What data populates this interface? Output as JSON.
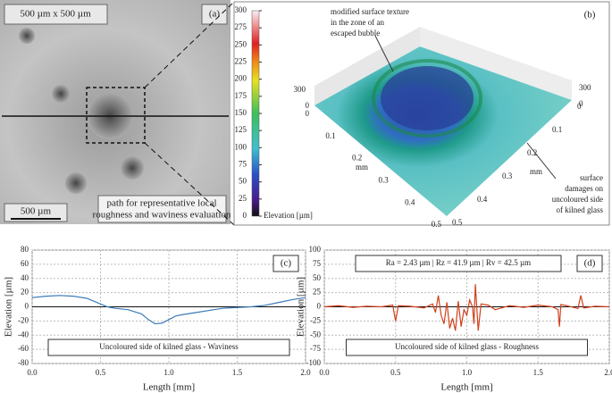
{
  "panel_a": {
    "label": "(a)",
    "size_text": "500 µm  x 500 µm",
    "scale_text": "500 µm",
    "path_note": [
      "path for representative local",
      "roughness and waviness evaluation"
    ]
  },
  "panel_b": {
    "label": "(b)",
    "bubble_note": [
      "modified surface texture",
      "in the zone of an",
      "escaped bubble"
    ],
    "damage_note": [
      "surface",
      "damages on",
      "uncoloured side",
      "of kilned glass"
    ],
    "colorbar_label": "Elevation [µm]",
    "colorbar_ticks": [
      0,
      25,
      50,
      75,
      100,
      125,
      150,
      175,
      200,
      225,
      250,
      275,
      300
    ],
    "z_left": [
      "300",
      "0"
    ],
    "z_right": [
      "300",
      "0"
    ],
    "axis_unit": "mm",
    "left_axis_ticks": [
      "0",
      "0.1",
      "0.2",
      "0.3",
      "0.4",
      "0.5"
    ],
    "right_axis_ticks": [
      "0",
      "0.1",
      "0.2",
      "0.3",
      "0.4",
      "0.5"
    ]
  },
  "chart_data": [
    {
      "type": "line",
      "panel_label": "(c)",
      "x_label": "Length [mm]",
      "y_label": "Elevation [µm]",
      "xlim": [
        0,
        2
      ],
      "xticks": [
        {
          "value": 0,
          "label": "0.0"
        },
        0.5,
        {
          "value": 1,
          "label": "1.0"
        },
        1.5,
        {
          "value": 2,
          "label": "2.0"
        }
      ],
      "ylim": [
        -80,
        80
      ],
      "yticks": [
        -80,
        -60,
        -40,
        -20,
        0,
        20,
        40,
        60,
        80
      ],
      "grid": true,
      "x": [
        0,
        0.1,
        0.2,
        0.3,
        0.4,
        0.5,
        0.55,
        0.6,
        0.7,
        0.8,
        0.85,
        0.9,
        0.95,
        1.0,
        1.05,
        1.1,
        1.2,
        1.3,
        1.4,
        1.5,
        1.6,
        1.7,
        1.8,
        1.9,
        2.0
      ],
      "series": [
        {
          "name": "Uncoloured side of kilned glass - Waviness",
          "color": "#3a7ab8",
          "values": [
            13,
            15,
            16,
            15,
            12,
            4,
            0,
            -2,
            -4,
            -10,
            -18,
            -24,
            -23,
            -18,
            -13,
            -11,
            -8,
            -5,
            -2,
            -1,
            0,
            2,
            6,
            10,
            13
          ]
        }
      ]
    },
    {
      "type": "line",
      "panel_label": "(d)",
      "stats_text": "Ra = 2.43 µm  |  Rz = 41.9 µm  |  Rv = 42.5 µm",
      "x_label": "Length [mm]",
      "y_label": "Elevation [µm]",
      "xlim": [
        0,
        2
      ],
      "xticks": [
        {
          "value": 0,
          "label": "0.0"
        },
        0.5,
        {
          "value": 1,
          "label": "1.0"
        },
        1.5,
        {
          "value": 2,
          "label": "2.0"
        }
      ],
      "ylim": [
        -100,
        100
      ],
      "yticks": [
        -100,
        -75,
        -50,
        -25,
        0,
        25,
        50,
        75,
        100
      ],
      "grid": true,
      "x": [
        0,
        0.1,
        0.2,
        0.3,
        0.4,
        0.48,
        0.5,
        0.52,
        0.6,
        0.7,
        0.76,
        0.78,
        0.8,
        0.82,
        0.84,
        0.86,
        0.88,
        0.9,
        0.92,
        0.94,
        0.96,
        0.98,
        1.0,
        1.02,
        1.04,
        1.05,
        1.06,
        1.08,
        1.1,
        1.15,
        1.2,
        1.3,
        1.4,
        1.5,
        1.6,
        1.64,
        1.65,
        1.66,
        1.7,
        1.78,
        1.8,
        1.82,
        1.9,
        2.0
      ],
      "series": [
        {
          "name": "Uncoloured side of kilned glass - Roughness",
          "color": "#d0401a",
          "values": [
            0,
            2,
            -1,
            1,
            0,
            3,
            -25,
            2,
            1,
            -2,
            5,
            -10,
            20,
            -15,
            -30,
            8,
            -38,
            -20,
            -42,
            10,
            -35,
            -5,
            -15,
            12,
            0,
            -30,
            40,
            -42,
            5,
            3,
            -5,
            2,
            -1,
            3,
            0,
            -5,
            -35,
            4,
            2,
            -3,
            20,
            -2,
            1,
            0
          ]
        }
      ]
    }
  ]
}
